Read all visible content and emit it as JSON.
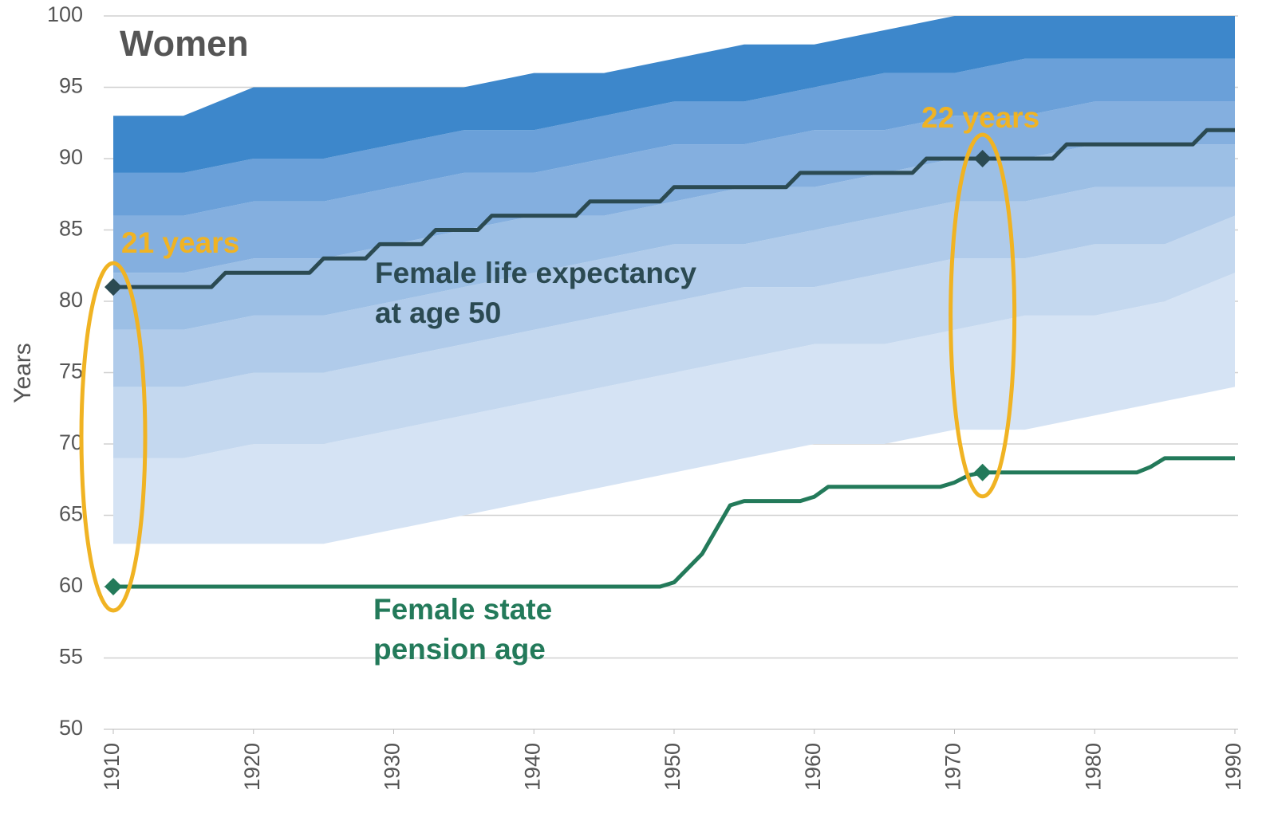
{
  "chart_data": {
    "type": "fan",
    "title": "Women",
    "y_label": "Years",
    "xlim": [
      1910,
      1990
    ],
    "xticks": [
      1910,
      1920,
      1930,
      1940,
      1950,
      1960,
      1970,
      1980,
      1990
    ],
    "ylim": [
      50,
      100
    ],
    "yticks": [
      50,
      55,
      60,
      65,
      70,
      75,
      80,
      85,
      90,
      95,
      100
    ],
    "grid": true,
    "fan": {
      "x": [
        1910,
        1915,
        1920,
        1925,
        1930,
        1935,
        1940,
        1945,
        1950,
        1955,
        1960,
        1965,
        1970,
        1975,
        1980,
        1985,
        1990
      ],
      "bounds": [
        [
          63,
          63,
          63,
          63,
          64,
          65,
          66,
          67,
          68,
          69,
          70,
          70,
          71,
          71,
          72,
          73,
          74
        ],
        [
          69,
          69,
          70,
          70,
          71,
          72,
          73,
          74,
          75,
          76,
          77,
          77,
          78,
          79,
          79,
          80,
          82
        ],
        [
          74,
          74,
          75,
          75,
          76,
          77,
          78,
          79,
          80,
          81,
          81,
          82,
          83,
          83,
          84,
          84,
          86
        ],
        [
          78,
          78,
          79,
          79,
          80,
          81,
          82,
          83,
          84,
          84,
          85,
          86,
          87,
          87,
          88,
          88,
          88
        ],
        [
          82,
          82,
          83,
          83,
          84,
          85,
          86,
          86,
          87,
          88,
          88,
          89,
          90,
          90,
          91,
          91,
          91
        ],
        [
          86,
          86,
          87,
          87,
          88,
          89,
          89,
          90,
          91,
          91,
          92,
          92,
          93,
          93,
          94,
          94,
          94
        ],
        [
          89,
          89,
          90,
          90,
          91,
          92,
          92,
          93,
          94,
          94,
          95,
          96,
          96,
          97,
          97,
          97,
          97
        ],
        [
          93,
          93,
          95,
          95,
          95,
          95,
          96,
          96,
          97,
          98,
          98,
          99,
          100,
          100,
          100,
          100,
          100
        ]
      ],
      "colors": [
        "#d5e3f4",
        "#c4d8ef",
        "#b0cbea",
        "#9cbfe5",
        "#84afdf",
        "#6aa0d9",
        "#3d87cb"
      ]
    },
    "series": [
      {
        "label": [
          "Female life expectancy",
          "at age 50"
        ],
        "color": "#2b4a52",
        "x": [
          1910,
          1917,
          1918,
          1924,
          1925,
          1928,
          1929,
          1932,
          1933,
          1936,
          1937,
          1943,
          1944,
          1949,
          1950,
          1958,
          1959,
          1967,
          1968,
          1977,
          1978,
          1987,
          1988,
          1990
        ],
        "values": [
          81,
          81,
          82,
          82,
          83,
          83,
          84,
          84,
          85,
          85,
          86,
          86,
          87,
          87,
          88,
          88,
          89,
          89,
          90,
          90,
          91,
          91,
          92,
          92
        ]
      },
      {
        "label": [
          "Female state",
          "pension age"
        ],
        "color": "#237a5a",
        "x": [
          1910,
          1949,
          1950,
          1952,
          1953,
          1954,
          1955,
          1959,
          1960,
          1961,
          1969,
          1970,
          1971,
          1972,
          1983,
          1984,
          1985,
          1990
        ],
        "values": [
          60,
          60,
          60.3,
          62.3,
          64,
          65.7,
          66,
          66,
          66.3,
          67,
          67,
          67.3,
          67.8,
          68,
          68,
          68.4,
          69,
          69
        ]
      }
    ],
    "highlights": [
      {
        "x": 1910,
        "values": [
          81,
          60
        ],
        "label": "21 years"
      },
      {
        "x": 1972,
        "values": [
          90,
          68
        ],
        "label": "22 years"
      }
    ]
  }
}
